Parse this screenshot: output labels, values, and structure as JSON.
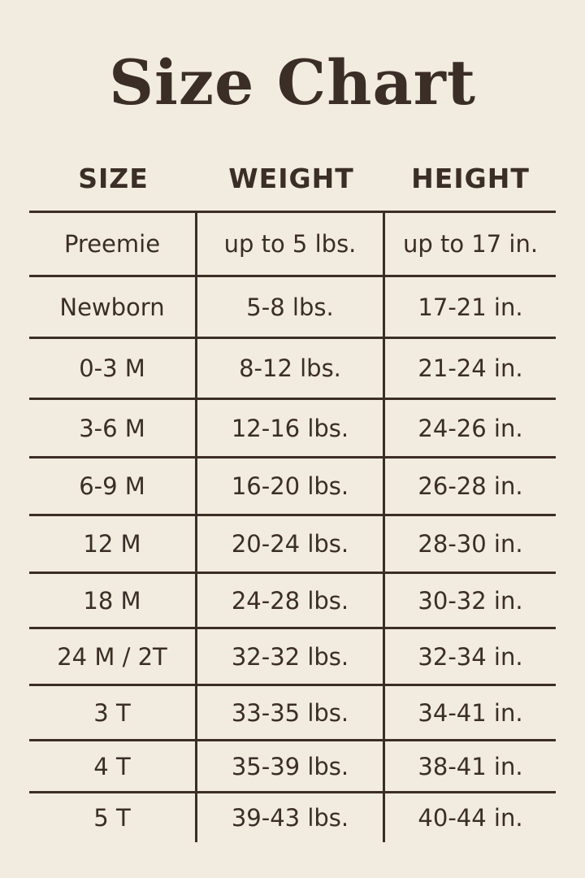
{
  "title": "Size Chart",
  "headers": [
    "SIZE",
    "WEIGHT",
    "HEIGHT"
  ],
  "rows": [
    [
      "Preemie",
      "up to 5 lbs.",
      "up to 17 in."
    ],
    [
      "Newborn",
      "5-8 lbs.",
      "17-21 in."
    ],
    [
      "0-3 M",
      "8-12 lbs.",
      "21-24 in."
    ],
    [
      "3-6 M",
      "12-16 lbs.",
      "24-26 in."
    ],
    [
      "6-9 M",
      "16-20 lbs.",
      "26-28 in."
    ],
    [
      "12 M",
      "20-24 lbs.",
      "28-30 in."
    ],
    [
      "18 M",
      "24-28 lbs.",
      "30-32 in."
    ],
    [
      "24 M / 2T",
      "32-32 lbs.",
      "32-34 in."
    ],
    [
      "3 T",
      "33-35 lbs.",
      "34-41 in."
    ],
    [
      "4 T",
      "35-39 lbs.",
      "38-41 in."
    ],
    [
      "5 T",
      "39-43 lbs.",
      "40-44 in."
    ]
  ],
  "colors": {
    "background": "#f2ebe0",
    "text": "#3a2e26"
  }
}
